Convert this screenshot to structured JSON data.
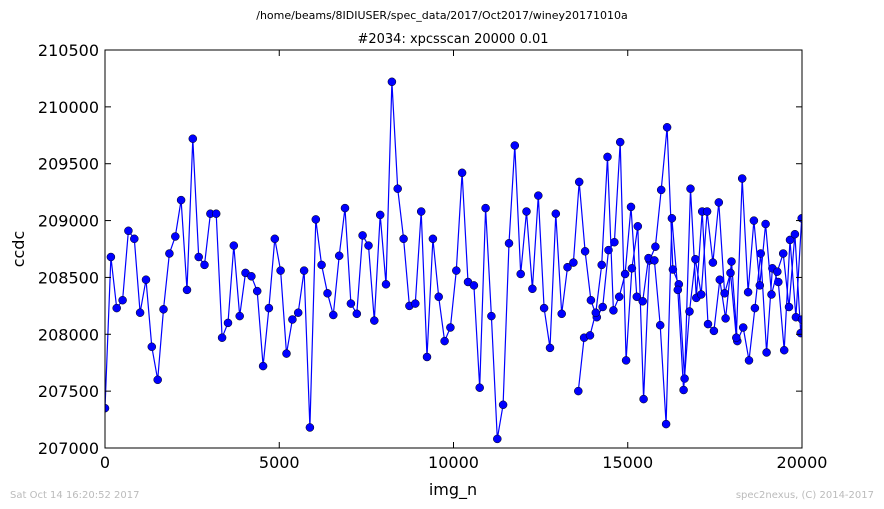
{
  "figure": {
    "suptitle": "/home/beams/8IDIUSER/spec_data/2017/Oct2017/winey20171010a",
    "footer_left": "Sat Oct 14 16:20:52 2017",
    "footer_right": "spec2nexus, (C) 2014-2017"
  },
  "chart_data": {
    "type": "line",
    "title": "#2034: xpcsscan 20000 0.01",
    "xlabel": "img_n",
    "ylabel": "ccdc",
    "xlim": [
      0,
      20000
    ],
    "ylim": [
      207000,
      210500
    ],
    "xticks": [
      0,
      5000,
      10000,
      15000,
      20000
    ],
    "yticks": [
      207000,
      207500,
      208000,
      208500,
      209000,
      209500,
      210000,
      210500
    ],
    "grid": false,
    "color": "#0000ff",
    "marker": "circle",
    "series": [
      {
        "x": [
          0,
          168,
          336,
          504,
          672,
          840,
          1008,
          1176,
          1344,
          1512,
          1680,
          1848,
          2016,
          2184,
          2352,
          2520,
          2688,
          2856,
          3024,
          3192,
          3360,
          3528,
          3696,
          3864,
          4032,
          4200,
          4368,
          4536,
          4704,
          4872,
          5040,
          5208,
          5376,
          5544,
          5712,
          5880,
          6048,
          6216,
          6384,
          6552,
          6720,
          6888,
          7056,
          7224,
          7392,
          7560,
          7728,
          7896,
          8064,
          8232,
          8400,
          8568,
          8736,
          8904,
          9072,
          9240,
          9408,
          9576,
          9744,
          9912,
          10080,
          10248,
          10416,
          10584,
          10752,
          10920,
          11088,
          11256,
          11424,
          11592,
          11760,
          11928,
          12096,
          12264,
          12432,
          12600,
          12768,
          12936,
          13104,
          13272,
          13440,
          13608,
          13776,
          13944,
          14112,
          14280,
          14448,
          14616,
          14784,
          14952,
          15120,
          15288,
          15456,
          15624,
          15792,
          15960,
          16128,
          16296,
          16464,
          16632,
          16800,
          16968,
          17136,
          17304,
          17472,
          17640,
          17808,
          17976,
          18144,
          18312,
          18480,
          18648,
          18816,
          18984,
          19152,
          19320,
          19488,
          19656,
          19824,
          19992
        ],
        "y": [
          207350,
          208680,
          208230,
          208300,
          208910,
          208840,
          208190,
          208480,
          207890,
          207600,
          208220,
          208710,
          208860,
          209180,
          208390,
          209720,
          208680,
          208610,
          209060,
          209060,
          207970,
          208100,
          208780,
          208160,
          208540,
          208510,
          208380,
          207720,
          208230,
          208840,
          208560,
          207830,
          208130,
          208190,
          208560,
          207180,
          209010,
          208610,
          208360,
          208170,
          208690,
          209110,
          208270,
          208180,
          208870,
          208780,
          208120,
          209050,
          208440,
          210220,
          209280,
          208840,
          208250,
          208270,
          209080,
          207800,
          208840,
          208330,
          207940,
          208060,
          208560,
          209420,
          208460,
          208430,
          207530,
          209110,
          208160,
          207080,
          207380,
          208800,
          209660,
          208530,
          209080,
          208400,
          209220,
          208230,
          207880,
          209060,
          208180,
          208590,
          208630,
          209340,
          208730,
          208300,
          208150,
          208240,
          208740,
          208810,
          209690,
          207770,
          208580,
          208950,
          207430,
          208650,
          208770,
          209270,
          209820,
          208570,
          208440,
          207610,
          209280,
          208320,
          209080,
          208090,
          208030,
          208480,
          208140,
          208640,
          207940,
          208060,
          207770,
          208230,
          208710,
          207840,
          208580,
          208460,
          207860,
          208830,
          208150,
          209020
        ]
      },
      {
        "x": [
          13580,
          13748,
          13916,
          14084,
          14252,
          14420,
          14588,
          14756,
          14924,
          15092,
          15260,
          15428,
          15596,
          15764,
          15932,
          16100,
          16268,
          16436,
          16604,
          16772,
          16940,
          17108,
          17276,
          17444,
          17612,
          17780,
          17948,
          18116,
          18284,
          18452,
          18620,
          18788,
          18956,
          19124,
          19292,
          19460,
          19628,
          19796,
          19964,
          20000
        ],
        "y": [
          207500,
          207970,
          207990,
          208190,
          208610,
          209560,
          208210,
          208330,
          208530,
          209120,
          208330,
          208290,
          208670,
          208650,
          208080,
          207210,
          209020,
          208390,
          207510,
          208200,
          208660,
          208350,
          209080,
          208630,
          209160,
          208360,
          208540,
          207970,
          209370,
          208370,
          209000,
          208430,
          208970,
          208350,
          208550,
          208710,
          208240,
          208880,
          208010,
          208130
        ]
      }
    ]
  }
}
